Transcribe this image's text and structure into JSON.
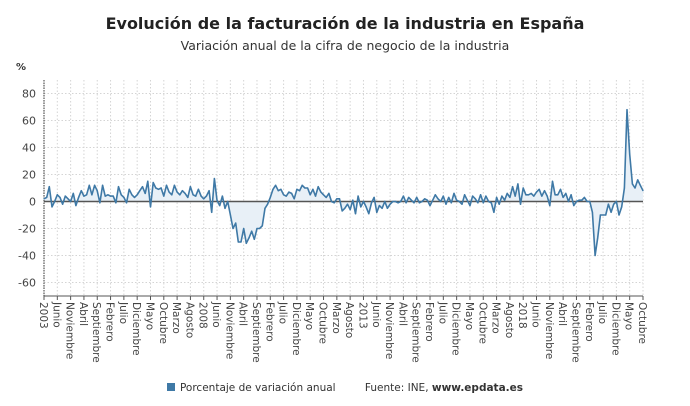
{
  "chart_data": {
    "type": "line",
    "title": "Evolución de la facturación de la industria en España",
    "subtitle": "Variación anual de la cifra de negocio de la industria",
    "ylabel": "%",
    "ylim": [
      -70,
      90
    ],
    "yticks": [
      -60,
      -40,
      -20,
      0,
      20,
      40,
      60,
      80
    ],
    "x_start": "2003-01",
    "x_end": "2021-10",
    "x_frequency": "monthly",
    "x_tick_every_months": 5,
    "xtick_labels": [
      "2003",
      "Junio",
      "Noviembre",
      "Abril",
      "Septiembre",
      "Febrero",
      "Julio",
      "Diciembre",
      "Mayo",
      "Octubre",
      "Marzo",
      "Agosto",
      "2008",
      "Junio",
      "Noviembre",
      "Abril",
      "Septiembre",
      "Febrero",
      "Julio",
      "Diciembre",
      "Mayo",
      "Octubre",
      "Marzo",
      "Agosto",
      "2013",
      "Junio",
      "Noviembre",
      "Abril",
      "Septiembre",
      "Febrero",
      "Julio",
      "Diciembre",
      "Mayo",
      "Octubre",
      "Marzo",
      "Agosto",
      "2018",
      "Junio",
      "Noviembre",
      "Abril",
      "Septiembre",
      "Febrero",
      "Julio",
      "Diciembre",
      "Mayo",
      "Octubre"
    ],
    "grid": true,
    "legend_position": "bottom",
    "series": [
      {
        "name": "Porcentaje de variación anual",
        "color": "#3f79a6",
        "fill_color": "#e8f0f7",
        "values": [
          2,
          3,
          11,
          -4,
          0,
          5,
          3,
          -2,
          4,
          2,
          0,
          6,
          -3,
          3,
          8,
          4,
          5,
          12,
          5,
          12,
          8,
          -1,
          12,
          4,
          5,
          4,
          4,
          -1,
          11,
          5,
          3,
          -1,
          9,
          5,
          3,
          5,
          8,
          11,
          6,
          15,
          -4,
          14,
          10,
          9,
          10,
          4,
          12,
          7,
          5,
          12,
          7,
          5,
          8,
          6,
          3,
          11,
          5,
          4,
          9,
          4,
          2,
          4,
          8,
          -8,
          17,
          1,
          -3,
          4,
          -5,
          0,
          -10,
          -20,
          -16,
          -30,
          -30,
          -20,
          -31,
          -27,
          -22,
          -28,
          -20,
          -20,
          -18,
          -5,
          -2,
          3,
          9,
          12,
          8,
          9,
          5,
          4,
          7,
          6,
          2,
          9,
          8,
          12,
          10,
          10,
          5,
          9,
          4,
          11,
          7,
          5,
          3,
          6,
          0,
          -1,
          2,
          2,
          -7,
          -5,
          -2,
          -6,
          1,
          -9,
          4,
          -4,
          0,
          -4,
          -9,
          -1,
          3,
          -8,
          -3,
          -5,
          0,
          -5,
          -2,
          0,
          0,
          -1,
          0,
          4,
          -1,
          3,
          1,
          -1,
          3,
          -1,
          0,
          2,
          1,
          -3,
          1,
          5,
          2,
          0,
          4,
          -2,
          3,
          -1,
          6,
          1,
          0,
          -2,
          5,
          1,
          -3,
          4,
          2,
          -1,
          5,
          -1,
          4,
          0,
          -1,
          -8,
          3,
          -2,
          4,
          1,
          6,
          3,
          11,
          4,
          13,
          -2,
          10,
          5,
          5,
          6,
          4,
          7,
          9,
          4,
          8,
          4,
          -3,
          15,
          5,
          5,
          9,
          3,
          6,
          0,
          5,
          -3,
          0,
          1,
          1,
          3,
          0,
          0,
          -8,
          -40,
          -27,
          -10,
          -10,
          -10,
          -2,
          -8,
          -2,
          0,
          -10,
          -4,
          10,
          68,
          35,
          13,
          10,
          16,
          12,
          8
        ]
      }
    ],
    "source_label": "Fuente: INE,",
    "source_site": "www.epdata.es"
  }
}
